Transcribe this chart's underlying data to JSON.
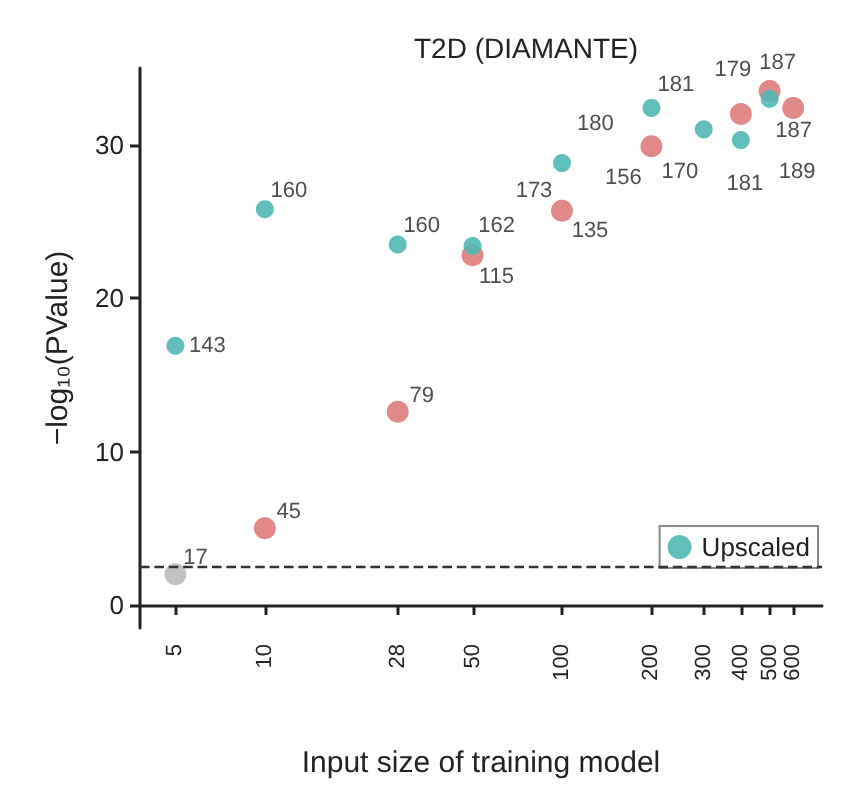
{
  "chart_data": {
    "type": "scatter",
    "title": "T2D (DIAMANTE)",
    "xlabel": "Input size of training model",
    "ylabel": "−log₁₀(PValue)",
    "log": "x",
    "xlim": [
      3.8,
      750
    ],
    "xticks": [
      5,
      10,
      28,
      50,
      100,
      200,
      300,
      400,
      500,
      600
    ],
    "ylim": [
      -1.5,
      35
    ],
    "yticks": [
      0,
      10,
      20,
      30
    ],
    "grid": false,
    "legend": "bottom right",
    "marker": "circle",
    "ref_lines": [
      {
        "axis": "y",
        "value": 2.5,
        "line_style": "dashed",
        "color": "#333333"
      }
    ],
    "series": [
      {
        "color": "#e07b7b",
        "colors": [
          "#bbbbbb",
          "#e07b7b",
          "#e07b7b",
          "#e07b7b",
          "#e07b7b",
          "#e07b7b",
          "#e07b7b",
          "#e07b7b",
          "#e07b7b",
          "#e07b7b"
        ],
        "x": [
          5,
          10,
          28,
          50,
          100,
          200,
          300,
          400,
          500,
          600
        ],
        "values": [
          2.0,
          5.0,
          12.6,
          22.8,
          25.7,
          29.9,
          null,
          32.0,
          33.5,
          32.4
        ]
      },
      {
        "name": "Upscaled",
        "color": "#4fb8b3",
        "x": [
          5,
          10,
          28,
          50,
          100,
          200,
          300,
          400,
          500
        ],
        "values": [
          16.9,
          25.8,
          23.5,
          23.4,
          28.8,
          32.4,
          31.0,
          30.3,
          33.0
        ]
      }
    ],
    "annotations": [
      {
        "text": "17",
        "x": 5,
        "y": 2.0
      },
      {
        "text": "45",
        "x": 10,
        "y": 5.0
      },
      {
        "text": "79",
        "x": 28,
        "y": 12.6
      },
      {
        "text": "115",
        "x": 50,
        "y": 22.8
      },
      {
        "text": "135",
        "x": 100,
        "y": 25.7
      },
      {
        "text": "156",
        "x": 200,
        "y": 29.9
      },
      {
        "text": "170",
        "x": 300,
        "y": 30.6
      },
      {
        "text": "179",
        "x": 400,
        "y": 32.0
      },
      {
        "text": "187",
        "x": 500,
        "y": 33.5
      },
      {
        "text": "189",
        "x": 600,
        "y": 32.4
      },
      {
        "text": "143",
        "x": 5,
        "y": 16.9
      },
      {
        "text": "160",
        "x": 10,
        "y": 25.8
      },
      {
        "text": "160",
        "x": 28,
        "y": 23.5
      },
      {
        "text": "162",
        "x": 50,
        "y": 23.4
      },
      {
        "text": "173",
        "x": 100,
        "y": 28.8
      },
      {
        "text": "180",
        "x": 200,
        "y": 32.4
      },
      {
        "text": "181",
        "x": 300,
        "y": 31.0
      },
      {
        "text": "181",
        "x": 400,
        "y": 30.3
      },
      {
        "text": "187",
        "x": 500,
        "y": 33.0
      }
    ]
  }
}
